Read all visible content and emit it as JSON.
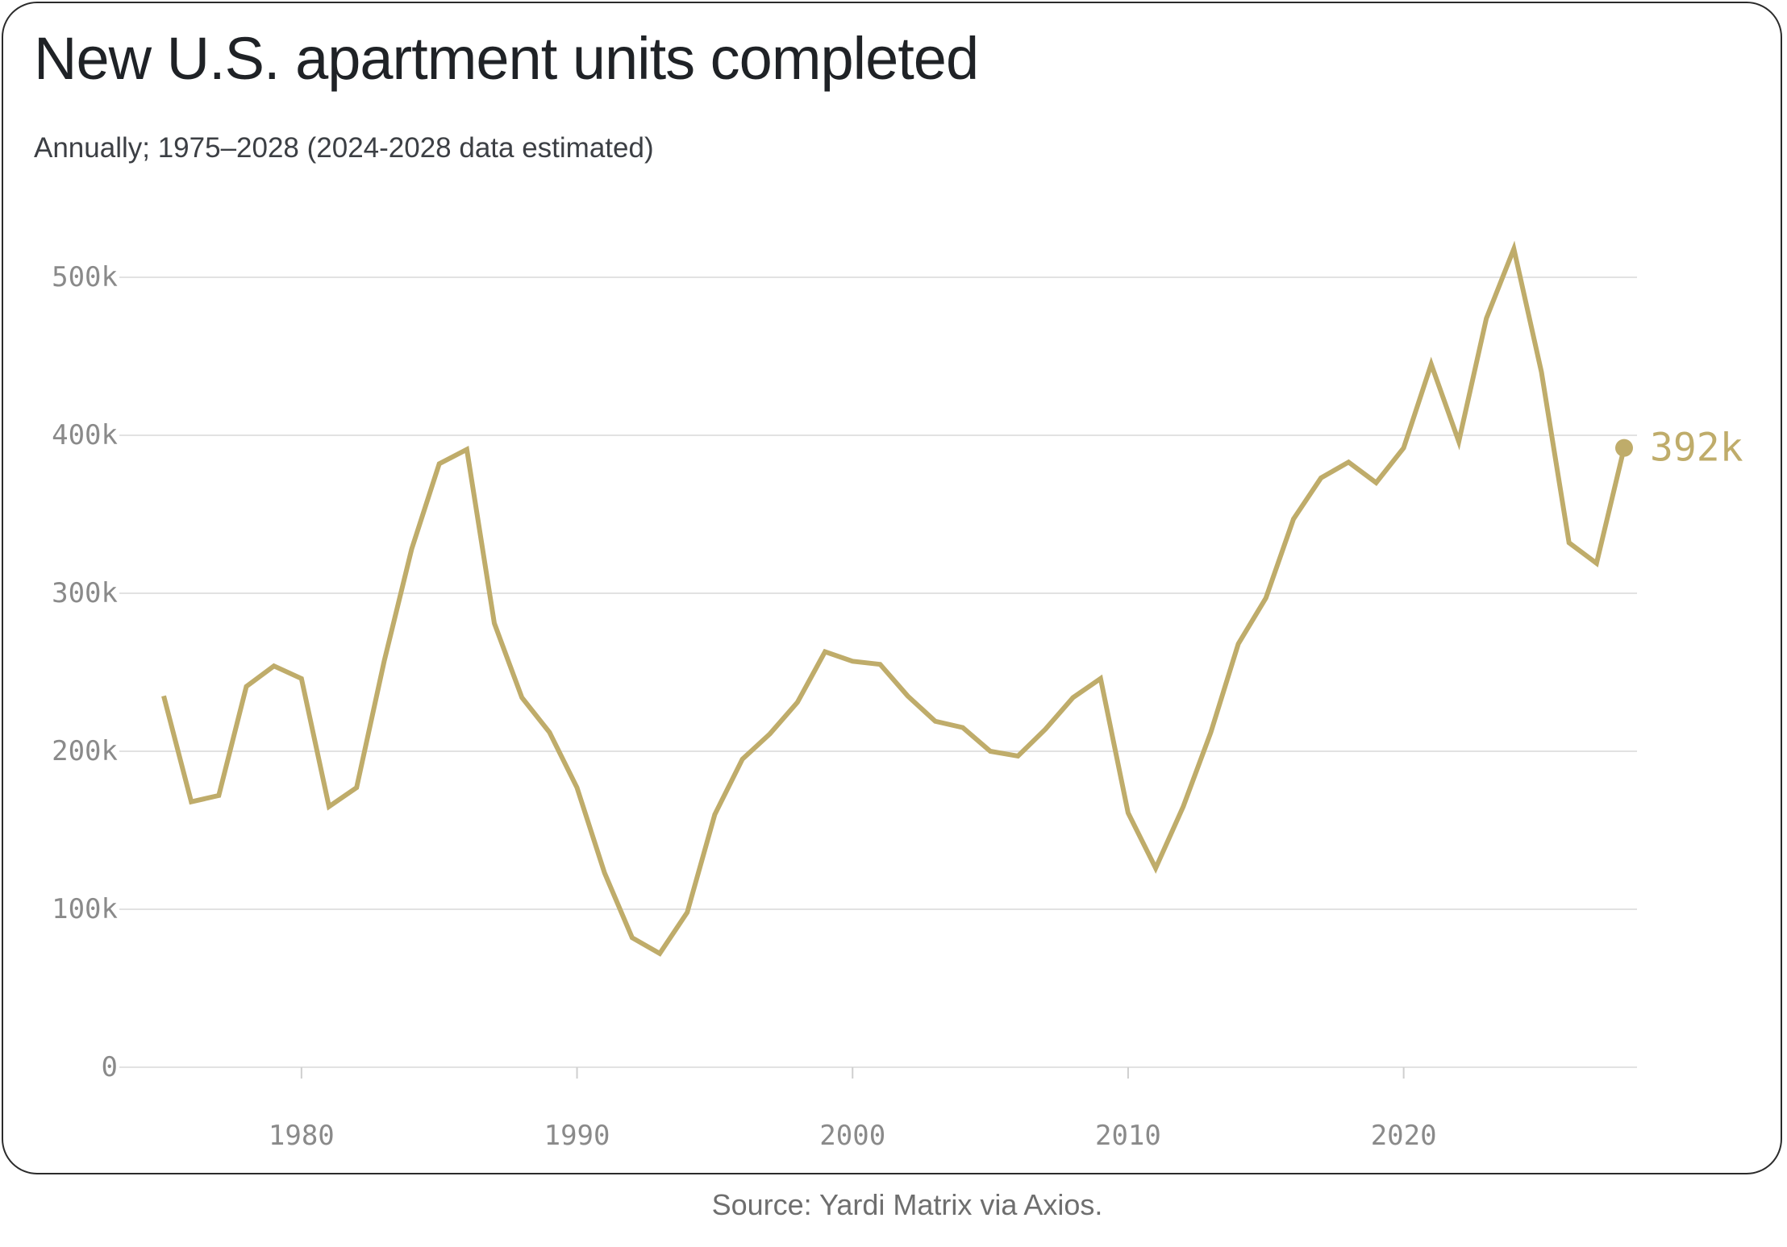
{
  "header": {
    "title": "New U.S. apartment units completed",
    "subtitle": "Annually; 1975–2028 (2024-2028 data estimated)"
  },
  "footer": {
    "source": "Source: Yardi Matrix via Axios."
  },
  "colors": {
    "line": "#bfac6a",
    "grid": "#e2e2e2",
    "tick_text": "#8a8a8a"
  },
  "chart_data": {
    "type": "line",
    "title": "New U.S. apartment units completed",
    "subtitle": "Annually; 1975–2028 (2024-2028 data estimated)",
    "xlabel": "",
    "ylabel": "",
    "x_range": [
      1975,
      2028
    ],
    "ylim": [
      0,
      500000
    ],
    "grid": "horizontal",
    "x_ticks": [
      1980,
      1990,
      2000,
      2010,
      2020
    ],
    "x_tick_labels": [
      "1980",
      "1990",
      "2000",
      "2010",
      "2020"
    ],
    "y_ticks": [
      0,
      100000,
      200000,
      300000,
      400000,
      500000
    ],
    "y_tick_labels": [
      "0",
      "100k",
      "200k",
      "300k",
      "400k",
      "500k"
    ],
    "end_label": "392k",
    "series": [
      {
        "x": [
          1975,
          1976,
          1977,
          1978,
          1979,
          1980,
          1981,
          1982,
          1983,
          1984,
          1985,
          1986,
          1987,
          1988,
          1989,
          1990,
          1991,
          1992,
          1993,
          1994,
          1995,
          1996,
          1997,
          1998,
          1999,
          2000,
          2001,
          2002,
          2003,
          2004,
          2005,
          2006,
          2007,
          2008,
          2009,
          2010,
          2011,
          2012,
          2013,
          2014,
          2015,
          2016,
          2017,
          2018,
          2019,
          2020,
          2021,
          2022,
          2023,
          2024,
          2025,
          2026,
          2027,
          2028
        ],
        "values": [
          235000,
          168000,
          172000,
          241000,
          254000,
          246000,
          165000,
          177000,
          257000,
          328000,
          382000,
          391000,
          281000,
          234000,
          212000,
          177000,
          123000,
          82000,
          72000,
          98000,
          160000,
          195000,
          211000,
          231000,
          263000,
          257000,
          255000,
          235000,
          219000,
          215000,
          200000,
          197000,
          214000,
          234000,
          246000,
          161000,
          126000,
          165000,
          212000,
          268000,
          297000,
          347000,
          373000,
          383000,
          370000,
          392000,
          445000,
          396000,
          474000,
          518000,
          440000,
          332000,
          319000,
          392000
        ]
      }
    ]
  }
}
